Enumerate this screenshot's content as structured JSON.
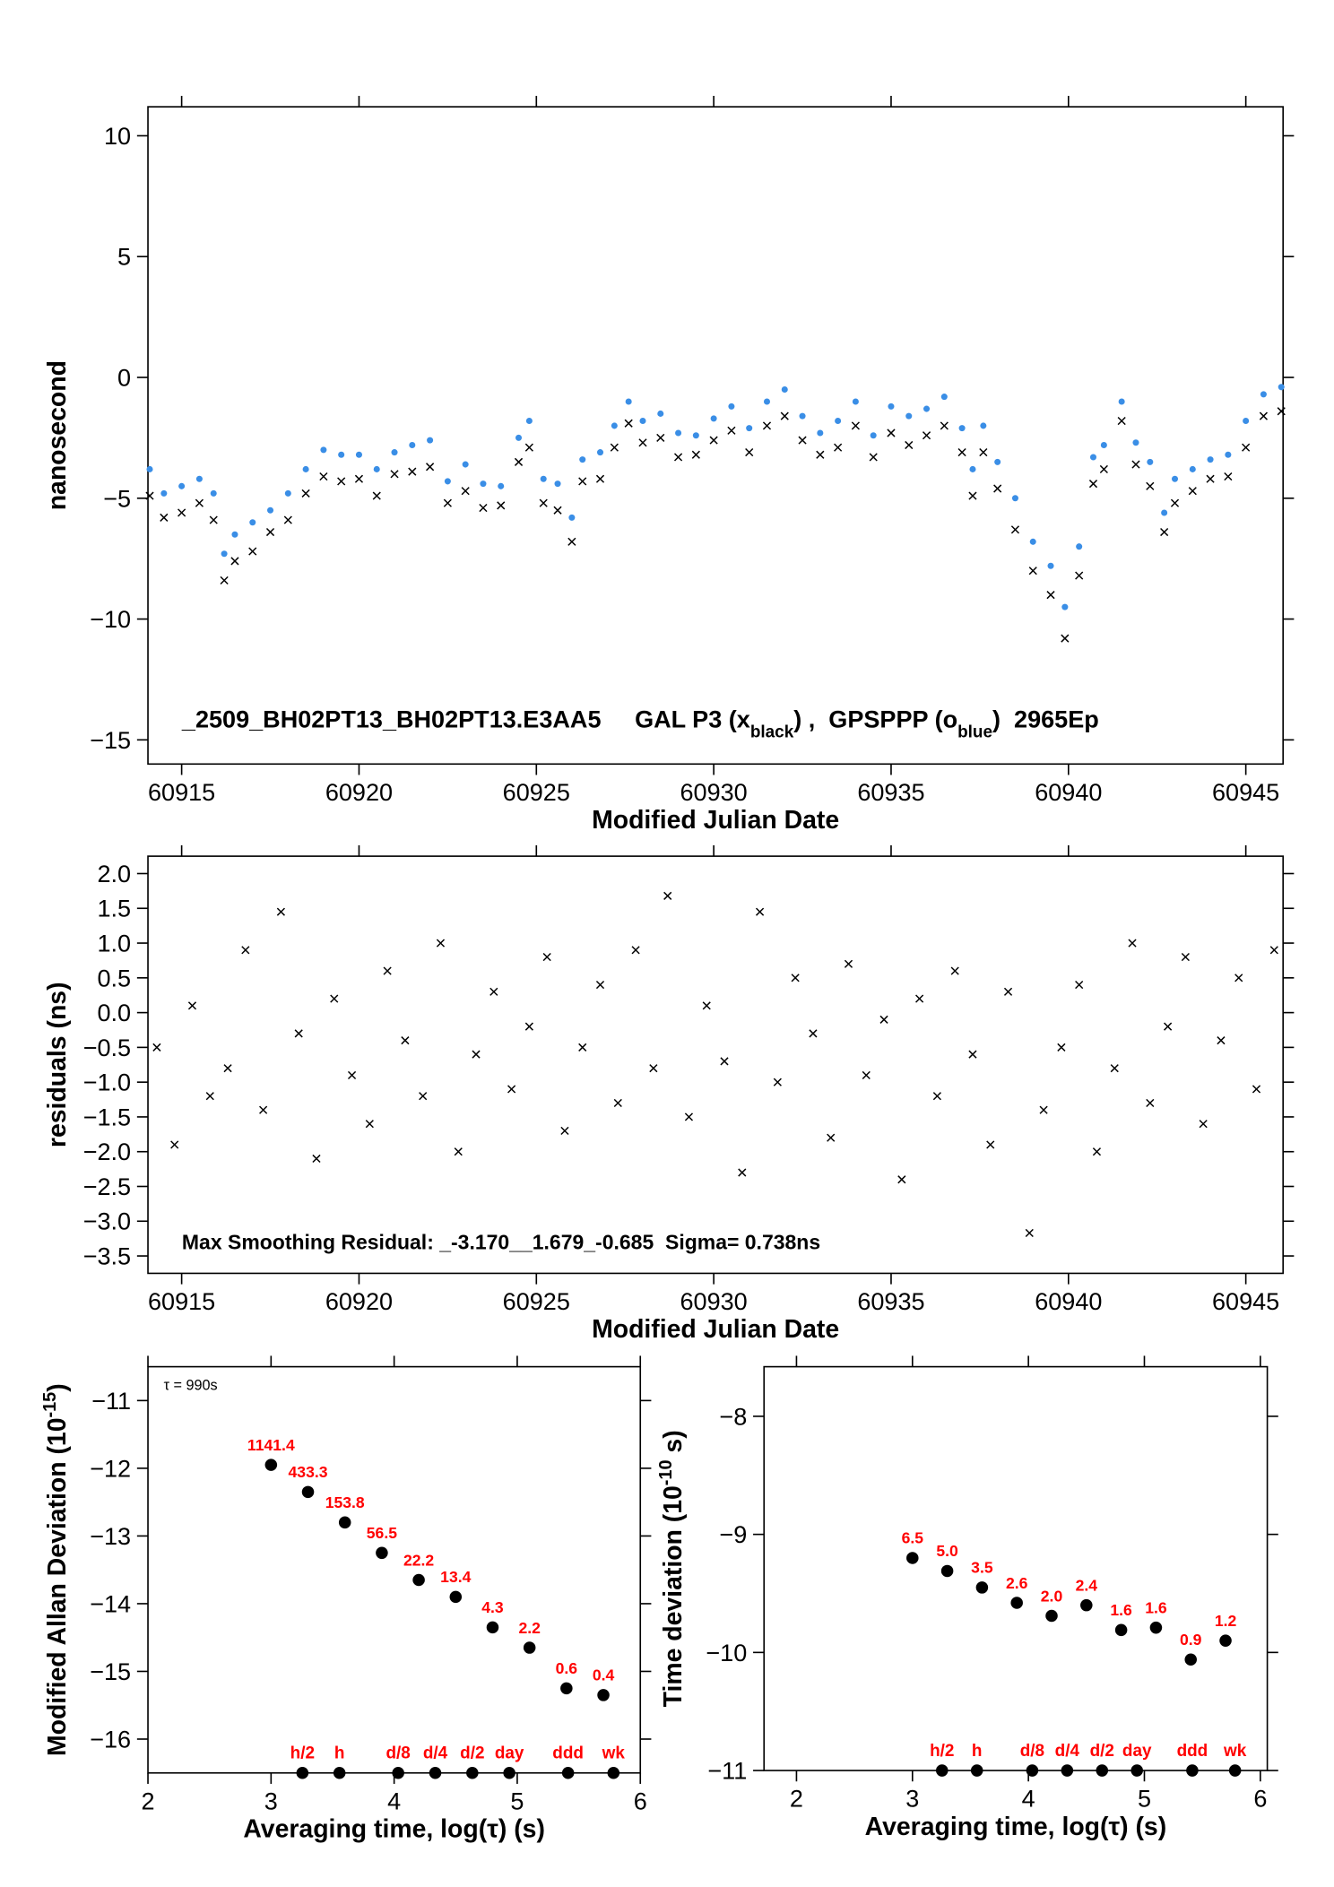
{
  "chart_data": [
    {
      "type": "scatter",
      "xlabel": "Modified Julian Date",
      "ylabel": "nanosecond",
      "annotation": [
        "_2509_BH02PT13_BH02PT13.E3AA5     GAL P3 (x",
        "black",
        ") ,  GPSPPP (o",
        "blue",
        ")  2965Ep"
      ],
      "xlim": [
        60914.05,
        60946.05
      ],
      "ylim": [
        -16,
        11.2
      ],
      "xticks": [
        60915,
        60920,
        60925,
        60930,
        60935,
        60940,
        60945
      ],
      "yticks": [
        10,
        5,
        0,
        {
          "value": -5,
          "label": "−5"
        },
        {
          "value": -10,
          "label": "−10"
        },
        {
          "value": -15,
          "label": "−15"
        }
      ],
      "x": [
        60914.1,
        60914.5,
        60915.0,
        60915.5,
        60915.9,
        60916.2,
        60916.5,
        60917.0,
        60917.5,
        60918.0,
        60918.5,
        60919.0,
        60919.5,
        60920.0,
        60920.5,
        60921.0,
        60921.5,
        60922.0,
        60922.5,
        60923.0,
        60923.5,
        60924.0,
        60924.5,
        60924.8,
        60925.2,
        60925.6,
        60926.0,
        60926.3,
        60926.8,
        60927.2,
        60927.6,
        60928.0,
        60928.5,
        60929.0,
        60929.5,
        60930.0,
        60930.5,
        60931.0,
        60931.5,
        60932.0,
        60932.5,
        60933.0,
        60933.5,
        60934.0,
        60934.5,
        60935.0,
        60935.5,
        60936.0,
        60936.5,
        60937.0,
        60937.3,
        60937.6,
        60938.0,
        60938.5,
        60939.0,
        60939.5,
        60939.9,
        60940.3,
        60940.7,
        60941.0,
        60941.5,
        60941.9,
        60942.3,
        60942.7,
        60943.0,
        60943.5,
        60944.0,
        60944.5,
        60945.0,
        60945.5,
        60946.0
      ],
      "series": [
        {
          "color": "#000000",
          "marker": "x",
          "values": [
            -4.9,
            -5.8,
            -5.6,
            -5.2,
            -5.9,
            -8.4,
            -7.6,
            -7.2,
            -6.4,
            -5.9,
            -4.8,
            -4.1,
            -4.3,
            -4.2,
            -4.9,
            -4.0,
            -3.9,
            -3.7,
            -5.2,
            -4.7,
            -5.4,
            -5.3,
            -3.5,
            -2.9,
            -5.2,
            -5.5,
            -6.8,
            -4.3,
            -4.2,
            -2.9,
            -1.9,
            -2.7,
            -2.5,
            -3.3,
            -3.2,
            -2.6,
            -2.2,
            -3.1,
            -2.0,
            -1.6,
            -2.6,
            -3.2,
            -2.9,
            -2.0,
            -3.3,
            -2.3,
            -2.8,
            -2.4,
            -2.0,
            -3.1,
            -4.9,
            -3.1,
            -4.6,
            -6.3,
            -8.0,
            -9.0,
            -10.8,
            -8.2,
            -4.4,
            -3.8,
            -1.8,
            -3.6,
            -4.5,
            -6.4,
            -5.2,
            -4.7,
            -4.2,
            -4.1,
            -2.9,
            -1.6,
            -1.4
          ]
        },
        {
          "color": "#3a8ee6",
          "marker": "o",
          "values": [
            -3.8,
            -4.8,
            -4.5,
            -4.2,
            -4.8,
            -7.3,
            -6.5,
            -6.0,
            -5.5,
            -4.8,
            -3.8,
            -3.0,
            -3.2,
            -3.2,
            -3.8,
            -3.1,
            -2.8,
            -2.6,
            -4.3,
            -3.6,
            -4.4,
            -4.5,
            -2.5,
            -1.8,
            -4.2,
            -4.4,
            -5.8,
            -3.4,
            -3.1,
            -2.0,
            -1.0,
            -1.8,
            -1.5,
            -2.3,
            -2.4,
            -1.7,
            -1.2,
            -2.1,
            -1.0,
            -0.5,
            -1.6,
            -2.3,
            -1.8,
            -1.0,
            -2.4,
            -1.2,
            -1.6,
            -1.3,
            -0.8,
            -2.1,
            -3.8,
            -2.0,
            -3.5,
            -5.0,
            -6.8,
            -7.8,
            -9.5,
            -7.0,
            -3.3,
            -2.8,
            -1.0,
            -2.7,
            -3.5,
            -5.6,
            -4.2,
            -3.8,
            -3.4,
            -3.2,
            -1.8,
            -0.7,
            -0.4
          ]
        }
      ]
    },
    {
      "type": "scatter",
      "xlabel": "Modified Julian Date",
      "ylabel": "residuals (ns)",
      "annotation": [
        "Max Smoothing Residual: _-3.170__1.679_-0.685  Sigma= 0.738ns"
      ],
      "xlim": [
        60914.05,
        60946.05
      ],
      "ylim": [
        -3.75,
        2.25
      ],
      "xticks": [
        60915,
        60920,
        60925,
        60930,
        60935,
        60940,
        60945
      ],
      "yticks": [
        {
          "value": 2,
          "label": "2.0"
        },
        1.5,
        {
          "value": 1,
          "label": "1.0"
        },
        0.5,
        {
          "value": 0,
          "label": "0.0"
        },
        {
          "value": -0.5,
          "label": "−0.5"
        },
        {
          "value": -1,
          "label": "−1.0"
        },
        {
          "value": -1.5,
          "label": "−1.5"
        },
        {
          "value": -2,
          "label": "−2.0"
        },
        {
          "value": -2.5,
          "label": "−2.5"
        },
        {
          "value": -3,
          "label": "−3.0"
        },
        {
          "value": -3.5,
          "label": "−3.5"
        }
      ],
      "x": [
        60914.3,
        60914.8,
        60915.3,
        60915.8,
        60916.3,
        60916.8,
        60917.3,
        60917.8,
        60918.3,
        60918.8,
        60919.3,
        60919.8,
        60920.3,
        60920.8,
        60921.3,
        60921.8,
        60922.3,
        60922.8,
        60923.3,
        60923.8,
        60924.3,
        60924.8,
        60925.3,
        60925.8,
        60926.3,
        60926.8,
        60927.3,
        60927.8,
        60928.3,
        60928.7,
        60929.3,
        60929.8,
        60930.3,
        60930.8,
        60931.3,
        60931.8,
        60932.3,
        60932.8,
        60933.3,
        60933.8,
        60934.3,
        60934.8,
        60935.3,
        60935.8,
        60936.3,
        60936.8,
        60937.3,
        60937.8,
        60938.3,
        60938.9,
        60939.3,
        60939.8,
        60940.3,
        60940.8,
        60941.3,
        60941.8,
        60942.3,
        60942.8,
        60943.3,
        60943.8,
        60944.3,
        60944.8,
        60945.3,
        60945.8
      ],
      "series": [
        {
          "color": "#000000",
          "marker": "x",
          "values": [
            -0.5,
            -1.9,
            0.1,
            -1.2,
            -0.8,
            0.9,
            -1.4,
            1.45,
            -0.3,
            -2.1,
            0.2,
            -0.9,
            -1.6,
            0.6,
            -0.4,
            -1.2,
            1.0,
            -2.0,
            -0.6,
            0.3,
            -1.1,
            -0.2,
            0.8,
            -1.7,
            -0.5,
            0.4,
            -1.3,
            0.9,
            -0.8,
            1.679,
            -1.5,
            0.1,
            -0.7,
            -2.3,
            1.45,
            -1.0,
            0.5,
            -0.3,
            -1.8,
            0.7,
            -0.9,
            -0.1,
            -2.4,
            0.2,
            -1.2,
            0.6,
            -0.6,
            -1.9,
            0.3,
            -3.17,
            -1.4,
            -0.5,
            0.4,
            -2.0,
            -0.8,
            1.0,
            -1.3,
            -0.2,
            0.8,
            -1.6,
            -0.4,
            0.5,
            -1.1,
            0.9
          ]
        }
      ]
    },
    {
      "type": "scatter",
      "xlabel": "Averaging time, log(τ) (s)",
      "ylabel": [
        "Modified Allan Deviation (10",
        "-15",
        ")"
      ],
      "annotation": [
        "τ = 990s"
      ],
      "xlim": [
        2,
        6
      ],
      "ylim": [
        -16.5,
        -10.5
      ],
      "xticks": [
        2,
        3,
        4,
        5,
        6
      ],
      "yticks": [
        {
          "value": -11,
          "label": "−11"
        },
        {
          "value": -12,
          "label": "−12"
        },
        {
          "value": -13,
          "label": "−13"
        },
        {
          "value": -14,
          "label": "−14"
        },
        {
          "value": -15,
          "label": "−15"
        },
        {
          "value": -16,
          "label": "−16"
        }
      ],
      "x": [
        3.0,
        3.3,
        3.6,
        3.9,
        4.2,
        4.5,
        4.8,
        5.1,
        5.4,
        5.7
      ],
      "series": [
        {
          "color": "#000000",
          "marker": "dot",
          "label_color": "#ff0000",
          "values": [
            -11.95,
            -12.35,
            -12.8,
            -13.25,
            -13.65,
            -13.9,
            -14.35,
            -14.65,
            -15.25,
            -15.35
          ],
          "point_labels": [
            "1141.4",
            "433.3",
            "153.8",
            "56.5",
            "22.2",
            "13.4",
            "4.3",
            "2.2",
            "0.6",
            "0.4"
          ]
        }
      ],
      "markers": [
        {
          "label": "h/2",
          "x": 3.255
        },
        {
          "label": "h",
          "x": 3.556
        },
        {
          "label": "d/8",
          "x": 4.033
        },
        {
          "label": "d/4",
          "x": 4.334
        },
        {
          "label": "d/2",
          "x": 4.635
        },
        {
          "label": "day",
          "x": 4.936
        },
        {
          "label": "ddd",
          "x": 5.413
        },
        {
          "label": "wk",
          "x": 5.782
        }
      ]
    },
    {
      "type": "scatter",
      "xlabel": "Averaging time, log(τ) (s)",
      "ylabel": [
        "Time deviation (10",
        "-10",
        " s)"
      ],
      "xlim": [
        1.72,
        6.06
      ],
      "ylim": [
        -11,
        -7.58
      ],
      "xticks": [
        2,
        3,
        4,
        5,
        6
      ],
      "yticks": [
        {
          "value": -8,
          "label": "−8"
        },
        {
          "value": -9,
          "label": "−9"
        },
        {
          "value": -10,
          "label": "−10"
        },
        {
          "value": -11,
          "label": "−11"
        }
      ],
      "x": [
        3.0,
        3.3,
        3.6,
        3.9,
        4.2,
        4.5,
        4.8,
        5.1,
        5.4,
        5.7
      ],
      "series": [
        {
          "color": "#000000",
          "marker": "dot",
          "label_color": "#ff0000",
          "values": [
            -9.2,
            -9.31,
            -9.45,
            -9.58,
            -9.69,
            -9.6,
            -9.81,
            -9.79,
            -10.06,
            -9.9
          ],
          "point_labels": [
            "6.5",
            "5.0",
            "3.5",
            "2.6",
            "2.0",
            "2.4",
            "1.6",
            "1.6",
            "0.9",
            "1.2"
          ]
        }
      ],
      "markers": [
        {
          "label": "h/2",
          "x": 3.255
        },
        {
          "label": "h",
          "x": 3.556
        },
        {
          "label": "d/8",
          "x": 4.033
        },
        {
          "label": "d/4",
          "x": 4.334
        },
        {
          "label": "d/2",
          "x": 4.635
        },
        {
          "label": "day",
          "x": 4.936
        },
        {
          "label": "ddd",
          "x": 5.413
        },
        {
          "label": "wk",
          "x": 5.782
        }
      ]
    }
  ]
}
